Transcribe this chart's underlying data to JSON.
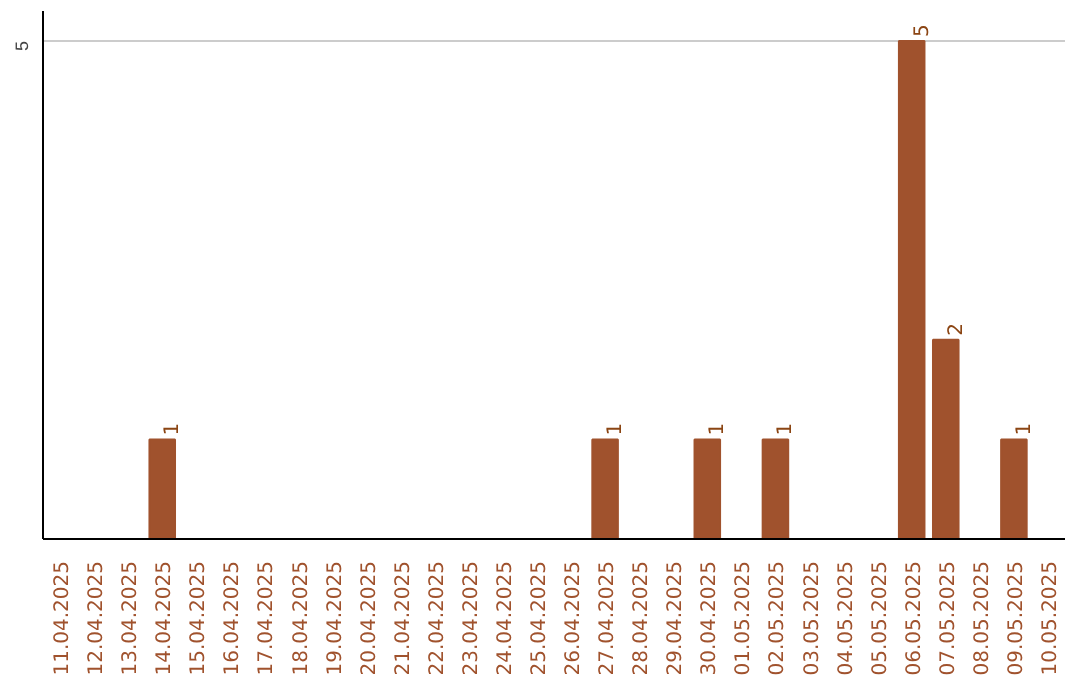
{
  "chart_data": {
    "type": "bar",
    "categories": [
      "11.04.2025",
      "12.04.2025",
      "13.04.2025",
      "14.04.2025",
      "15.04.2025",
      "16.04.2025",
      "17.04.2025",
      "18.04.2025",
      "19.04.2025",
      "20.04.2025",
      "21.04.2025",
      "22.04.2025",
      "23.04.2025",
      "24.04.2025",
      "25.04.2025",
      "26.04.2025",
      "27.04.2025",
      "28.04.2025",
      "29.04.2025",
      "30.04.2025",
      "01.05.2025",
      "02.05.2025",
      "03.05.2025",
      "04.05.2025",
      "05.05.2025",
      "06.05.2025",
      "07.05.2025",
      "08.05.2025",
      "09.05.2025",
      "10.05.2025"
    ],
    "values": [
      0,
      0,
      0,
      1,
      0,
      0,
      0,
      0,
      0,
      0,
      0,
      0,
      0,
      0,
      0,
      0,
      1,
      0,
      0,
      1,
      0,
      1,
      0,
      0,
      0,
      5,
      2,
      0,
      1,
      0
    ],
    "value_labels": [
      null,
      null,
      null,
      "1",
      null,
      null,
      null,
      null,
      null,
      null,
      null,
      null,
      null,
      null,
      null,
      null,
      "1",
      null,
      null,
      "1",
      null,
      "1",
      null,
      null,
      null,
      "5",
      "2",
      null,
      "1",
      null
    ],
    "color": "#a0522d",
    "ylim": [
      0,
      5.3
    ],
    "yticks": [
      5
    ],
    "grid": "y"
  }
}
